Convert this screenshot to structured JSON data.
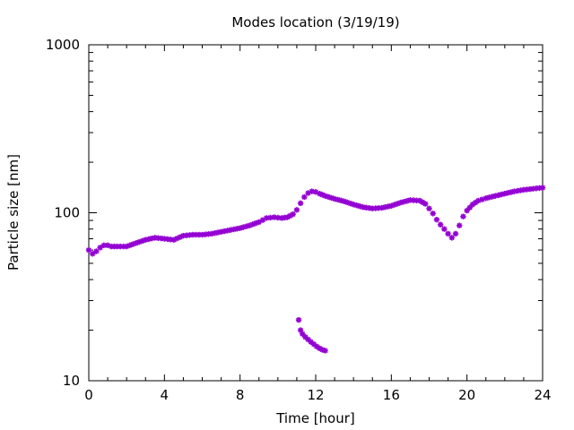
{
  "chart_data": {
    "type": "scatter",
    "title": "Modes location (3/19/19)",
    "xlabel": "Time [hour]",
    "ylabel": "Particle size [nm]",
    "xlim": [
      0,
      24
    ],
    "ylim": [
      10,
      1000
    ],
    "yscale": "log",
    "grid": false,
    "legend": "none",
    "xticks": [
      0,
      4,
      8,
      12,
      16,
      20,
      24
    ],
    "xtick_labels": [
      "0",
      "4",
      "8",
      "12",
      "16",
      "20",
      "24"
    ],
    "yticks": [
      10,
      100,
      1000
    ],
    "ytick_labels": [
      "10",
      "100",
      "1000"
    ],
    "series": [
      {
        "color": "#9400d3",
        "marker": "star",
        "x": [
          0.0,
          0.2,
          0.4,
          0.6,
          0.8,
          1.0,
          1.2,
          1.5,
          2.0,
          2.5,
          3.0,
          3.5,
          4.0,
          4.5,
          5.0,
          5.5,
          6.0,
          6.5,
          7.0,
          7.5,
          8.0,
          8.5,
          9.0,
          9.4,
          9.8,
          10.2,
          10.5,
          10.8,
          11.0,
          11.2,
          11.4,
          11.6,
          11.8,
          12.0,
          12.2,
          12.5,
          13.0,
          13.5,
          14.0,
          14.5,
          15.0,
          15.5,
          16.0,
          16.5,
          17.0,
          17.5,
          17.8,
          18.0,
          18.2,
          18.4,
          18.6,
          18.8,
          19.0,
          19.2,
          19.4,
          19.6,
          19.8,
          20.0,
          20.3,
          20.6,
          21.0,
          21.5,
          22.0,
          22.5,
          23.0,
          23.5,
          24.0
        ],
        "y": [
          60,
          57,
          59,
          62,
          64,
          64,
          63,
          63,
          63,
          66,
          69,
          71,
          70,
          69,
          73,
          74,
          74,
          75,
          77,
          79,
          81,
          84,
          88,
          93,
          94,
          93,
          94,
          98,
          104,
          114,
          124,
          131,
          134,
          133,
          130,
          126,
          121,
          117,
          112,
          108,
          106,
          107,
          110,
          115,
          119,
          118,
          113,
          106,
          99,
          91,
          85,
          80,
          75,
          71,
          75,
          84,
          95,
          103,
          112,
          118,
          122,
          126,
          130,
          134,
          137,
          139,
          141
        ]
      },
      {
        "color": "#9400d3",
        "marker": "star",
        "x": [
          11.1,
          11.2,
          11.3,
          11.45,
          11.6,
          11.75,
          11.9,
          12.05,
          12.2,
          12.35,
          12.5
        ],
        "y": [
          23,
          20,
          19,
          18.2,
          17.6,
          17.0,
          16.5,
          16.0,
          15.6,
          15.3,
          15.1
        ]
      }
    ]
  }
}
